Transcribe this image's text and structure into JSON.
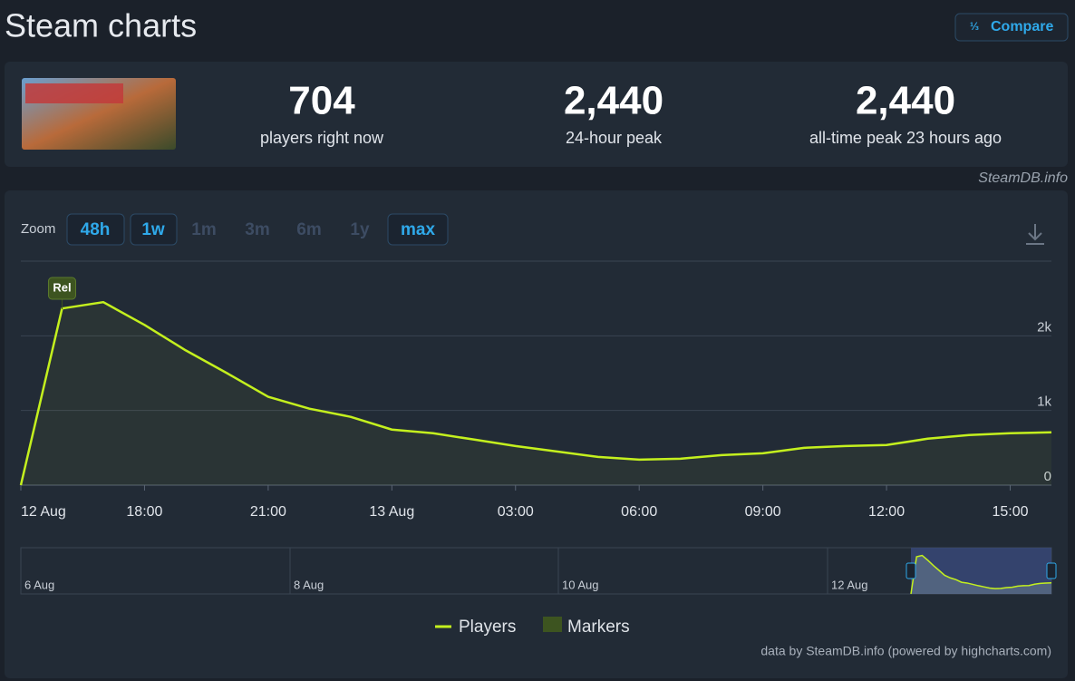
{
  "header": {
    "title": "Steam charts",
    "compare": "Compare"
  },
  "stats": [
    {
      "value": "704",
      "label": "players right now"
    },
    {
      "value": "2,440",
      "label": "24-hour peak"
    },
    {
      "value": "2,440",
      "label": "all-time peak 23 hours ago"
    }
  ],
  "source": "SteamDB.info",
  "zoom": {
    "label": "Zoom",
    "buttons": [
      "48h",
      "1w",
      "1m",
      "3m",
      "6m",
      "1y",
      "max"
    ]
  },
  "chart_data": {
    "type": "line",
    "categories": [
      "12 Aug",
      null,
      null,
      "18:00",
      null,
      null,
      "21:00",
      null,
      null,
      "13 Aug",
      null,
      null,
      "03:00",
      null,
      null,
      "06:00",
      null,
      null,
      "09:00",
      null,
      null,
      "12:00",
      null,
      null,
      "15:00",
      null
    ],
    "series": [
      {
        "name": "Players",
        "color": "#c4f01e",
        "values": [
          0,
          2366,
          2451,
          2146,
          1805,
          1500,
          1183,
          1024,
          915,
          744,
          695,
          610,
          524,
          451,
          378,
          341,
          354,
          402,
          427,
          500,
          524,
          537,
          622,
          671,
          695,
          707
        ]
      }
    ],
    "ylim": [
      0,
      3000
    ],
    "yticks": [
      0,
      {
        "value": 1000,
        "label": "1k"
      },
      {
        "value": 2000,
        "label": "2k"
      }
    ],
    "grid": true,
    "marker_label": "Rel",
    "marker_legend": "Markers",
    "marker_color": "#3d5420",
    "navigator_labels": [
      "6 Aug",
      "8 Aug",
      "10 Aug",
      "12 Aug"
    ],
    "credits": "data by SteamDB.info (powered by highcharts.com)"
  }
}
